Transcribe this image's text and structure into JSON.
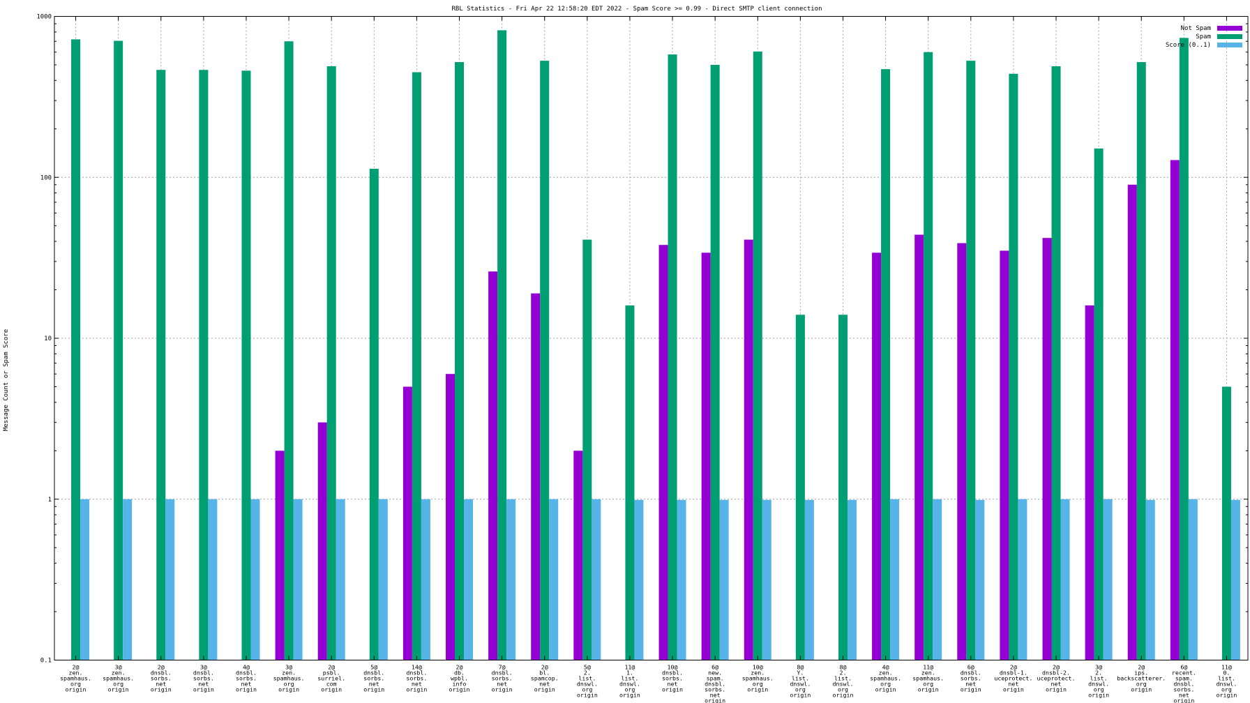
{
  "chart_data": {
    "type": "bar",
    "title": "RBL Statistics - Fri Apr 22 12:58:20 EDT 2022 - Spam Score >= 0.99 - Direct SMTP client connection",
    "ylabel": "Message Count or Spam Score",
    "xlabel": "",
    "yscale": "log",
    "ylim": [
      0.1,
      1000
    ],
    "yticks": [
      "0.1",
      "1",
      "10",
      "100",
      "1000"
    ],
    "grid": true,
    "legend_position": "top-right",
    "categories": [
      "2@\nzen.\nspamhaus.\norg\norigin",
      "3@\nzen.\nspamhaus.\norg\norigin",
      "2@\ndnsbl.\nsorbs.\nnet\norigin",
      "3@\ndnsbl.\nsorbs.\nnet\norigin",
      "4@\ndnsbl.\nsorbs.\nnet\norigin",
      "3@\nzen.\nspamhaus.\norg\norigin",
      "2@\npsbl.\nsurriel.\ncom\norigin",
      "5@\ndnsbl.\nsorbs.\nnet\norigin",
      "14@\ndnsbl.\nsorbs.\nnet\norigin",
      "2@\ndb.\nwpbl.\ninfo\norigin",
      "7@\ndnsbl.\nsorbs.\nnet\norigin",
      "2@\nbl.\nspamcop.\nnet\norigin",
      "5@\n2.\nlist.\ndnswl.\norg\norigin",
      "11@\n1.\nlist.\ndnswl.\norg\norigin",
      "10@\ndnsbl.\nsorbs.\nnet\norigin",
      "6@\nnew.\nspam.\ndnsbl.\nsorbs.\nnet\norigin",
      "10@\nzen.\nspamhaus.\norg\norigin",
      "8@\nY.\nlist.\ndnswl.\norg\norigin",
      "8@\n2.\nlist.\ndnswl.\norg\norigin",
      "4@\nzen.\nspamhaus.\norg\norigin",
      "11@\nzen.\nspamhaus.\norg\norigin",
      "6@\ndnsbl.\nsorbs.\nnet\norigin",
      "2@\ndnsbl-1.\nuceprotect.\nnet\norigin",
      "2@\ndnsbl-2.\nuceprotect.\nnet\norigin",
      "3@\n2.\nlist.\ndnswl.\norg\norigin",
      "2@\nips.\nbackscatterer.\norg\norigin",
      "6@\nrecent.\nspam.\ndnsbl.\nsorbs.\nnet\norigin",
      "11@\n0.\nlist.\ndnswl.\norg\norigin"
    ],
    "series": [
      {
        "name": "Not Spam",
        "color": "#9400d3",
        "values": [
          null,
          null,
          null,
          null,
          null,
          2,
          3,
          null,
          5,
          6,
          26,
          19,
          2,
          null,
          38,
          34,
          41,
          null,
          null,
          34,
          44,
          39,
          35,
          42,
          16,
          90,
          128,
          null
        ]
      },
      {
        "name": "Spam",
        "color": "#009e73",
        "values": [
          720,
          705,
          465,
          465,
          460,
          700,
          490,
          113,
          450,
          520,
          820,
          530,
          41,
          16,
          580,
          500,
          605,
          14,
          14,
          470,
          600,
          530,
          440,
          490,
          151,
          520,
          735,
          5
        ]
      },
      {
        "name": "Score (0..1)",
        "color": "#56b4e9",
        "values": [
          1,
          1,
          1,
          1,
          1,
          1,
          1,
          1,
          1,
          1,
          1,
          1,
          1,
          0.99,
          0.99,
          0.99,
          0.99,
          0.99,
          0.99,
          1,
          1,
          0.99,
          1,
          1,
          1,
          0.99,
          1,
          0.99
        ]
      }
    ]
  }
}
